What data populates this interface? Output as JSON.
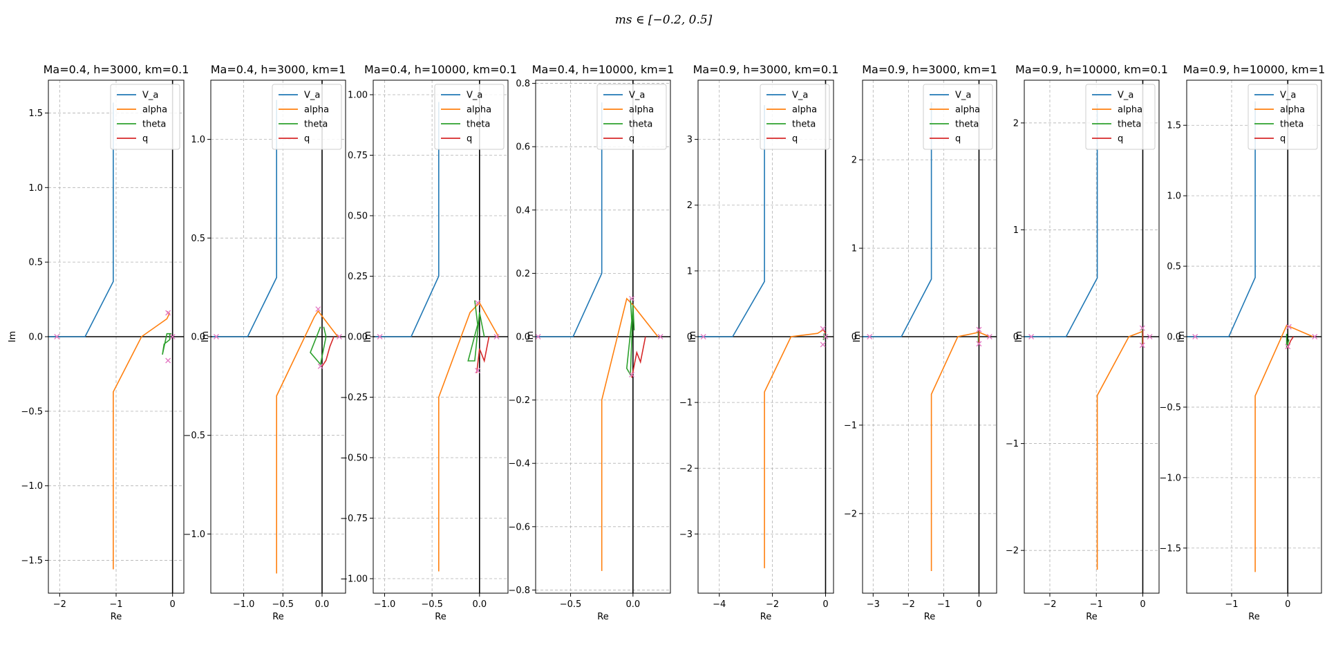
{
  "figure": {
    "suptitle": "ms ∈ [−0.2, 0.5]",
    "legend_location": "upper-right",
    "grid": true,
    "grid_style": "dashed",
    "pole_marker": "x",
    "colors": {
      "V_a": "#1f77b4",
      "alpha": "#ff7f0e",
      "theta": "#2ca02c",
      "q": "#d62728",
      "pole_marker": "#e377c2",
      "grid": "#b0b0b0",
      "axis_lines": "#000000"
    }
  },
  "chart_data": [
    {
      "type": "line",
      "title": "Ma=0.4, h=3000, km=0.1",
      "xlabel": "Re",
      "ylabel": "Im",
      "xlim": [
        -2.2,
        0.2
      ],
      "ylim": [
        -1.72,
        1.72
      ],
      "xticks": [
        -2,
        -1,
        0
      ],
      "xticklabels": [
        "−2",
        "−1",
        "0"
      ],
      "yticks": [
        -1.5,
        -1.0,
        -0.5,
        0.0,
        0.5,
        1.0,
        1.5
      ],
      "yticklabels": [
        "−1.5",
        "−1.0",
        "−0.5",
        "0.0",
        "0.5",
        "1.0",
        "1.5"
      ],
      "series": [
        {
          "name": "V_a",
          "points": [
            [
              -2.2,
              0
            ],
            [
              -1.55,
              0
            ],
            [
              -1.05,
              0.37
            ],
            [
              -1.05,
              1.57
            ]
          ]
        },
        {
          "name": "alpha",
          "points": [
            [
              -1.05,
              -1.56
            ],
            [
              -1.05,
              -0.37
            ],
            [
              -0.55,
              0
            ],
            [
              -0.1,
              0.12
            ],
            [
              -0.05,
              0.16
            ]
          ]
        },
        {
          "name": "theta",
          "points": [
            [
              -0.05,
              0.02
            ],
            [
              -0.05,
              -0.02
            ],
            [
              -0.15,
              -0.05
            ],
            [
              -0.18,
              -0.12
            ],
            [
              -0.1,
              0.02
            ],
            [
              -0.02,
              0.02
            ]
          ]
        },
        {
          "name": "q",
          "points": [
            [
              -0.06,
              0.15
            ],
            [
              -0.1,
              0.17
            ]
          ]
        }
      ],
      "poles": [
        [
          -2.05,
          0
        ],
        [
          -0.08,
          0.16
        ],
        [
          -0.08,
          -0.16
        ],
        [
          0.0,
          0.0
        ]
      ]
    },
    {
      "type": "line",
      "title": "Ma=0.4, h=3000, km=1",
      "xlabel": "Re",
      "ylabel": "Im",
      "xlim": [
        -1.42,
        0.3
      ],
      "ylim": [
        -1.3,
        1.3
      ],
      "xticks": [
        -1.0,
        -0.5,
        0.0
      ],
      "xticklabels": [
        "−1.0",
        "−0.5",
        "0.0"
      ],
      "yticks": [
        -1.0,
        -0.5,
        0.0,
        0.5,
        1.0
      ],
      "yticklabels": [
        "−1.0",
        "−0.5",
        "0.0",
        "0.5",
        "1.0"
      ],
      "series": [
        {
          "name": "V_a",
          "points": [
            [
              -1.4,
              0
            ],
            [
              -0.95,
              0
            ],
            [
              -0.58,
              0.3
            ],
            [
              -0.58,
              1.2
            ]
          ]
        },
        {
          "name": "alpha",
          "points": [
            [
              -0.58,
              -1.2
            ],
            [
              -0.58,
              -0.3
            ],
            [
              -0.1,
              0.1
            ],
            [
              -0.05,
              0.13
            ],
            [
              0.2,
              0.0
            ]
          ]
        },
        {
          "name": "theta",
          "points": [
            [
              -0.02,
              0.05
            ],
            [
              -0.05,
              0.02
            ],
            [
              -0.15,
              -0.08
            ],
            [
              -0.02,
              -0.14
            ],
            [
              0.05,
              0.0
            ],
            [
              0.02,
              0.05
            ]
          ]
        },
        {
          "name": "q",
          "points": [
            [
              0.0,
              -0.15
            ],
            [
              0.05,
              -0.12
            ],
            [
              0.1,
              -0.05
            ],
            [
              0.15,
              0.0
            ]
          ]
        }
      ],
      "poles": [
        [
          -1.35,
          0
        ],
        [
          -0.05,
          0.14
        ],
        [
          -0.02,
          -0.15
        ],
        [
          0.22,
          0
        ]
      ]
    },
    {
      "type": "line",
      "title": "Ma=0.4, h=10000, km=0.1",
      "xlabel": "Re",
      "ylabel": "Im",
      "xlim": [
        -1.12,
        0.3
      ],
      "ylim": [
        -1.06,
        1.06
      ],
      "xticks": [
        -1.0,
        -0.5,
        0.0
      ],
      "xticklabels": [
        "−1.0",
        "−0.5",
        "0.0"
      ],
      "yticks": [
        -1.0,
        -0.75,
        -0.5,
        -0.25,
        0.0,
        0.25,
        0.5,
        0.75,
        1.0
      ],
      "yticklabels": [
        "−1.00",
        "−0.75",
        "−0.50",
        "−0.25",
        "0.00",
        "0.25",
        "0.50",
        "0.75",
        "1.00"
      ],
      "series": [
        {
          "name": "V_a",
          "points": [
            [
              -1.1,
              0
            ],
            [
              -0.72,
              0
            ],
            [
              -0.43,
              0.25
            ],
            [
              -0.43,
              0.97
            ]
          ]
        },
        {
          "name": "alpha",
          "points": [
            [
              -0.43,
              -0.97
            ],
            [
              -0.43,
              -0.25
            ],
            [
              -0.1,
              0.1
            ],
            [
              0.0,
              0.14
            ],
            [
              0.2,
              0.0
            ]
          ]
        },
        {
          "name": "theta",
          "points": [
            [
              -0.05,
              0.15
            ],
            [
              -0.02,
              0.05
            ],
            [
              -0.12,
              -0.1
            ],
            [
              -0.05,
              -0.1
            ],
            [
              0.0,
              0.1
            ],
            [
              0.05,
              0.0
            ]
          ]
        },
        {
          "name": "q",
          "points": [
            [
              -0.03,
              -0.15
            ],
            [
              0.0,
              -0.05
            ],
            [
              0.05,
              -0.1
            ],
            [
              0.1,
              0.0
            ]
          ]
        }
      ],
      "poles": [
        [
          -1.05,
          0
        ],
        [
          -0.02,
          0.14
        ],
        [
          -0.02,
          -0.14
        ],
        [
          0.18,
          0
        ]
      ]
    },
    {
      "type": "line",
      "title": "Ma=0.4, h=10000, km=1",
      "xlabel": "Re",
      "ylabel": "Im",
      "xlim": [
        -0.78,
        0.3
      ],
      "ylim": [
        -0.81,
        0.81
      ],
      "xticks": [
        -0.5,
        0.0
      ],
      "xticklabels": [
        "−0.5",
        "0.0"
      ],
      "yticks": [
        -0.8,
        -0.6,
        -0.4,
        -0.2,
        0.0,
        0.2,
        0.4,
        0.6,
        0.8
      ],
      "yticklabels": [
        "−0.8",
        "−0.6",
        "−0.4",
        "−0.2",
        "0.0",
        "0.2",
        "0.4",
        "0.6",
        "0.8"
      ],
      "series": [
        {
          "name": "V_a",
          "points": [
            [
              -0.78,
              0
            ],
            [
              -0.48,
              0
            ],
            [
              -0.25,
              0.2
            ],
            [
              -0.25,
              0.74
            ]
          ]
        },
        {
          "name": "alpha",
          "points": [
            [
              -0.25,
              -0.74
            ],
            [
              -0.25,
              -0.2
            ],
            [
              -0.05,
              0.12
            ],
            [
              0.0,
              0.1
            ],
            [
              0.2,
              0.0
            ]
          ]
        },
        {
          "name": "theta",
          "points": [
            [
              -0.02,
              0.12
            ],
            [
              -0.01,
              0.05
            ],
            [
              -0.05,
              -0.1
            ],
            [
              -0.02,
              -0.12
            ],
            [
              0.0,
              0.1
            ],
            [
              0.01,
              0.02
            ]
          ]
        },
        {
          "name": "q",
          "points": [
            [
              -0.01,
              -0.13
            ],
            [
              0.03,
              -0.05
            ],
            [
              0.06,
              -0.08
            ],
            [
              0.1,
              0.0
            ]
          ]
        }
      ],
      "poles": [
        [
          -0.76,
          0
        ],
        [
          -0.01,
          0.12
        ],
        [
          -0.01,
          -0.12
        ],
        [
          0.22,
          0
        ]
      ]
    },
    {
      "type": "line",
      "title": "Ma=0.9, h=3000, km=0.1",
      "xlabel": "Re",
      "ylabel": "Im",
      "xlim": [
        -4.8,
        0.3
      ],
      "ylim": [
        -3.9,
        3.9
      ],
      "xticks": [
        -4,
        -2,
        0
      ],
      "xticklabels": [
        "−4",
        "−2",
        "0"
      ],
      "yticks": [
        -3,
        -2,
        -1,
        0,
        1,
        2,
        3
      ],
      "yticklabels": [
        "−3",
        "−2",
        "−1",
        "0",
        "1",
        "2",
        "3"
      ],
      "series": [
        {
          "name": "V_a",
          "points": [
            [
              -4.8,
              0
            ],
            [
              -3.5,
              0
            ],
            [
              -2.3,
              0.84
            ],
            [
              -2.3,
              3.52
            ]
          ]
        },
        {
          "name": "alpha",
          "points": [
            [
              -2.3,
              -3.52
            ],
            [
              -2.3,
              -0.84
            ],
            [
              -1.3,
              0
            ],
            [
              -0.3,
              0.05
            ],
            [
              -0.1,
              0.1
            ]
          ]
        },
        {
          "name": "theta",
          "points": [
            [
              -0.05,
              0.05
            ],
            [
              -0.08,
              -0.05
            ],
            [
              -0.02,
              0.02
            ]
          ]
        },
        {
          "name": "q",
          "points": [
            [
              -0.1,
              0.12
            ],
            [
              0.0,
              0.05
            ]
          ]
        }
      ],
      "poles": [
        [
          -4.6,
          0
        ],
        [
          -0.1,
          0.12
        ],
        [
          -0.1,
          -0.12
        ],
        [
          0.0,
          0.0
        ]
      ]
    },
    {
      "type": "line",
      "title": "Ma=0.9, h=3000, km=1",
      "xlabel": "Re",
      "ylabel": "Im",
      "xlim": [
        -3.3,
        0.5
      ],
      "ylim": [
        -2.9,
        2.9
      ],
      "xticks": [
        -3,
        -2,
        -1,
        0
      ],
      "xticklabels": [
        "−3",
        "−2",
        "−1",
        "0"
      ],
      "yticks": [
        -2,
        -1,
        0,
        1,
        2
      ],
      "yticklabels": [
        "−2",
        "−1",
        "0",
        "1",
        "2"
      ],
      "series": [
        {
          "name": "V_a",
          "points": [
            [
              -3.3,
              0
            ],
            [
              -2.2,
              0
            ],
            [
              -1.35,
              0.65
            ],
            [
              -1.35,
              2.65
            ]
          ]
        },
        {
          "name": "alpha",
          "points": [
            [
              -1.35,
              -2.65
            ],
            [
              -1.35,
              -0.65
            ],
            [
              -0.6,
              0
            ],
            [
              0.0,
              0.05
            ],
            [
              0.3,
              0.0
            ]
          ]
        },
        {
          "name": "theta",
          "points": [
            [
              -0.02,
              0.08
            ],
            [
              -0.02,
              -0.08
            ]
          ]
        },
        {
          "name": "q",
          "points": [
            [
              0.0,
              -0.08
            ],
            [
              0.0,
              0.08
            ]
          ]
        }
      ],
      "poles": [
        [
          -3.1,
          0
        ],
        [
          0.0,
          0.08
        ],
        [
          0.0,
          -0.08
        ],
        [
          0.3,
          0
        ]
      ]
    },
    {
      "type": "line",
      "title": "Ma=0.9, h=10000, km=0.1",
      "xlabel": "Re",
      "ylabel": "Im",
      "xlim": [
        -2.55,
        0.35
      ],
      "ylim": [
        -2.4,
        2.4
      ],
      "xticks": [
        -2,
        -1,
        0
      ],
      "xticklabels": [
        "−2",
        "−1",
        "0"
      ],
      "yticks": [
        -2,
        -1,
        0,
        1,
        2
      ],
      "yticklabels": [
        "−2",
        "−1",
        "0",
        "1",
        "2"
      ],
      "series": [
        {
          "name": "V_a",
          "points": [
            [
              -2.55,
              0
            ],
            [
              -1.65,
              0
            ],
            [
              -0.98,
              0.55
            ],
            [
              -0.98,
              2.18
            ]
          ]
        },
        {
          "name": "alpha",
          "points": [
            [
              -0.98,
              -2.18
            ],
            [
              -0.98,
              -0.55
            ],
            [
              -0.3,
              0
            ],
            [
              0.0,
              0.05
            ]
          ]
        },
        {
          "name": "theta",
          "points": [
            [
              -0.01,
              0.08
            ],
            [
              -0.01,
              -0.08
            ]
          ]
        },
        {
          "name": "q",
          "points": [
            [
              0.0,
              -0.08
            ],
            [
              0.0,
              0.06
            ]
          ]
        }
      ],
      "poles": [
        [
          -2.4,
          0
        ],
        [
          -0.01,
          0.08
        ],
        [
          -0.01,
          -0.08
        ],
        [
          0.15,
          0
        ]
      ]
    },
    {
      "type": "line",
      "title": "Ma=0.9, h=10000, km=1",
      "xlabel": "Re",
      "ylabel": "Im",
      "xlim": [
        -1.8,
        0.6
      ],
      "ylim": [
        -1.82,
        1.82
      ],
      "xticks": [
        -1,
        0
      ],
      "xticklabels": [
        "−1",
        "0"
      ],
      "yticks": [
        -1.5,
        -1.0,
        -0.5,
        0.0,
        0.5,
        1.0,
        1.5
      ],
      "yticklabels": [
        "−1.5",
        "−1.0",
        "−0.5",
        "0.0",
        "0.5",
        "1.0",
        "1.5"
      ],
      "series": [
        {
          "name": "V_a",
          "points": [
            [
              -1.8,
              0
            ],
            [
              -1.05,
              0
            ],
            [
              -0.58,
              0.42
            ],
            [
              -0.58,
              1.67
            ]
          ]
        },
        {
          "name": "alpha",
          "points": [
            [
              -0.58,
              -1.67
            ],
            [
              -0.58,
              -0.42
            ],
            [
              -0.02,
              0.08
            ],
            [
              0.1,
              0.06
            ],
            [
              0.45,
              0.0
            ]
          ]
        },
        {
          "name": "theta",
          "points": [
            [
              -0.02,
              0.02
            ],
            [
              -0.02,
              -0.08
            ],
            [
              0.02,
              -0.02
            ]
          ]
        },
        {
          "name": "q",
          "points": [
            [
              0.0,
              -0.08
            ],
            [
              0.05,
              -0.03
            ],
            [
              0.1,
              0.0
            ]
          ]
        }
      ],
      "poles": [
        [
          -1.65,
          0
        ],
        [
          0.02,
          0.07
        ],
        [
          0.0,
          -0.07
        ],
        [
          0.48,
          0
        ]
      ]
    }
  ]
}
